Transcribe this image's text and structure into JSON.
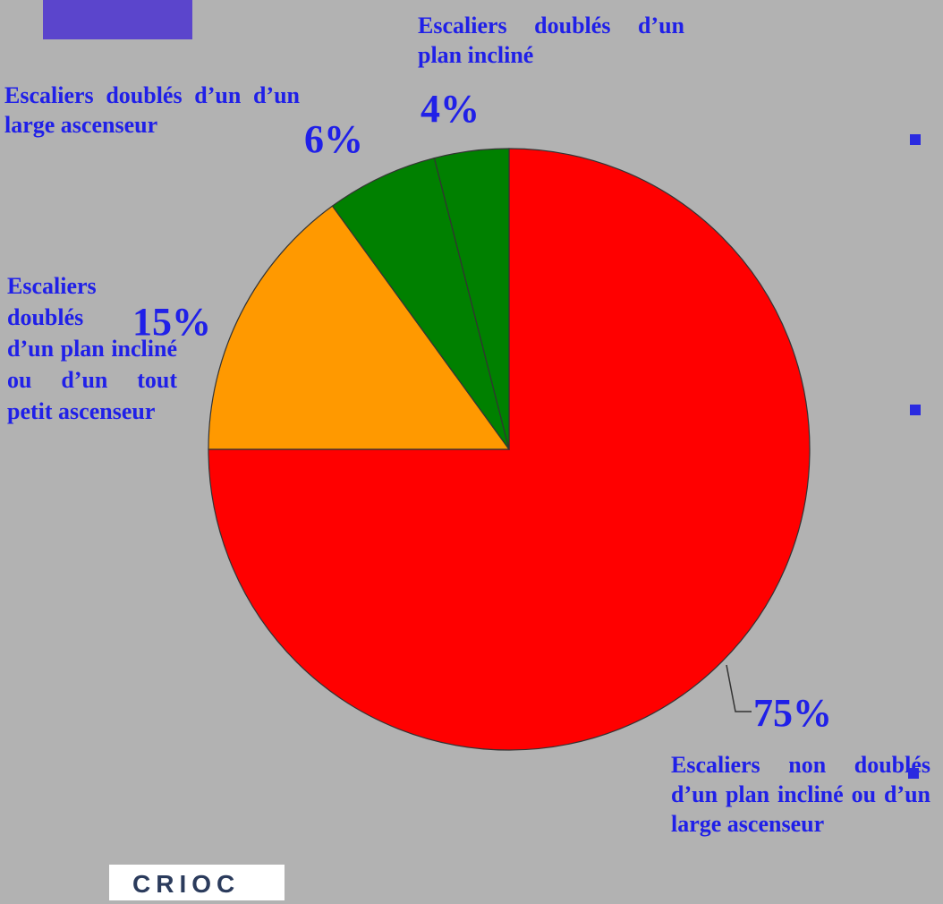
{
  "chart_data": {
    "type": "pie",
    "categories": [
      "Escaliers non doublés d’un plan incliné ou d’un large ascenseur",
      "Escaliers doublés d’un plan incliné ou d’un tout petit ascenseur",
      "Escaliers doublés d’un d’un large ascenseur",
      "Escaliers doublés d’un plan incliné"
    ],
    "values": [
      75,
      15,
      6,
      4
    ],
    "value_labels": [
      "75%",
      "15%",
      "6%",
      "4%"
    ],
    "colors": [
      "#ff0000",
      "#ff9900",
      "#008000",
      "#008000"
    ]
  },
  "logo": "CRIOC"
}
